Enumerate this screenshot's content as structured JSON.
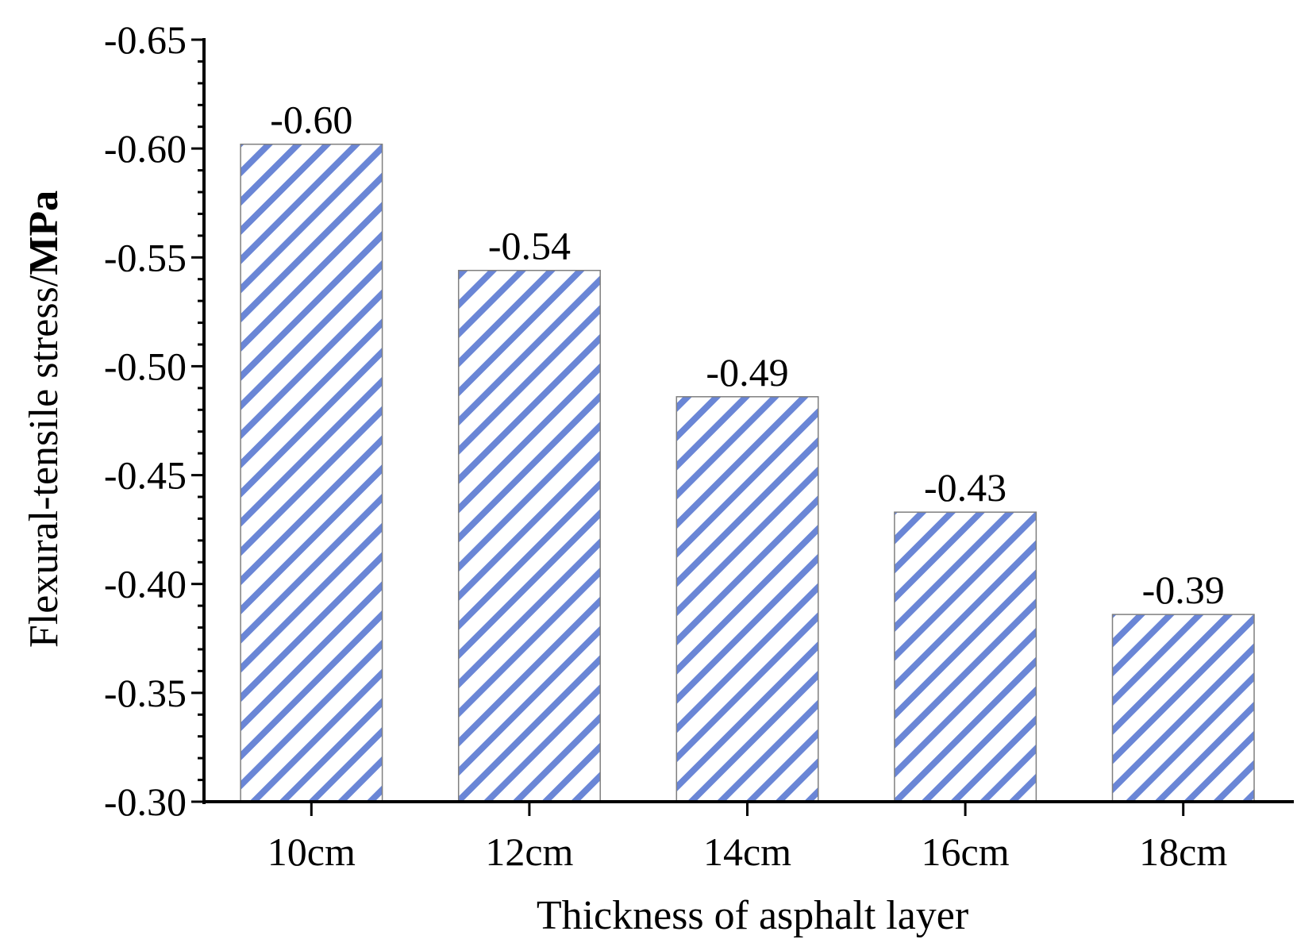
{
  "chart_data": {
    "type": "bar",
    "categories": [
      "10cm",
      "12cm",
      "14cm",
      "16cm",
      "18cm"
    ],
    "values": [
      -0.602,
      -0.544,
      -0.486,
      -0.433,
      -0.386
    ],
    "data_labels": [
      "-0.60",
      "-0.54",
      "-0.49",
      "-0.43",
      "-0.39"
    ],
    "xlabel": "Thickness of asphalt layer",
    "ylabel": "Flexural-tensile stress/",
    "ylabel_unit": "MPa",
    "ylim": [
      -0.3,
      -0.65
    ],
    "yticks": [
      "-0.65",
      "-0.60",
      "-0.55",
      "-0.50",
      "-0.45",
      "-0.40",
      "-0.35",
      "-0.30"
    ],
    "grid": false,
    "bar_fill": "hatched",
    "colors": {
      "hatch": "#6a86d6",
      "bar_border": "#7f7f7f",
      "axis": "#000000"
    }
  }
}
